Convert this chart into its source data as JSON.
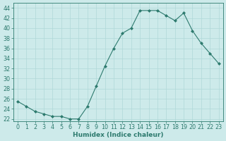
{
  "x": [
    0,
    1,
    2,
    3,
    4,
    5,
    6,
    7,
    8,
    9,
    10,
    11,
    12,
    13,
    14,
    15,
    16,
    17,
    18,
    19,
    20,
    21,
    22,
    23
  ],
  "y": [
    25.5,
    24.5,
    23.5,
    23.0,
    22.5,
    22.5,
    22.0,
    22.0,
    24.5,
    28.5,
    32.5,
    36.0,
    39.0,
    40.0,
    43.5,
    43.5,
    43.5,
    42.5,
    41.5,
    43.0,
    39.5,
    37.0,
    35.0,
    33.0
  ],
  "line_color": "#2d7a6e",
  "marker": "D",
  "marker_size": 2.0,
  "bg_color": "#cdeaea",
  "grid_color": "#b0d8d8",
  "xlabel": "Humidex (Indice chaleur)",
  "xlim": [
    -0.5,
    23.5
  ],
  "ylim": [
    21.5,
    45
  ],
  "yticks": [
    22,
    24,
    26,
    28,
    30,
    32,
    34,
    36,
    38,
    40,
    42,
    44
  ],
  "xticks": [
    0,
    1,
    2,
    3,
    4,
    5,
    6,
    7,
    8,
    9,
    10,
    11,
    12,
    13,
    14,
    15,
    16,
    17,
    18,
    19,
    20,
    21,
    22,
    23
  ],
  "label_fontsize": 6.5,
  "tick_fontsize": 5.8
}
